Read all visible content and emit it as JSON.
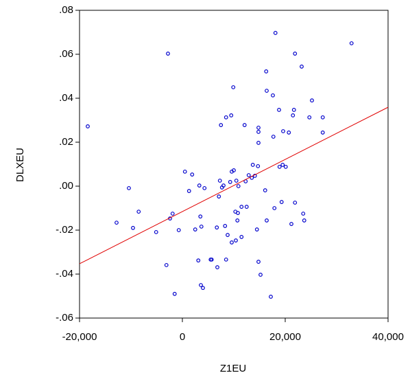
{
  "chart_data": {
    "type": "scatter",
    "x_label": "Z1EU",
    "y_label": "DLXEU",
    "xlim": [
      -20000,
      40000
    ],
    "xticks": [
      {
        "value": -20000,
        "label": "-20,000"
      },
      0,
      {
        "value": 20000,
        "label": "20,000"
      },
      {
        "value": 40000,
        "label": "40,000"
      }
    ],
    "ylim": [
      -0.06,
      0.08
    ],
    "yticks": [
      {
        "value": -0.06,
        "label": "-.06"
      },
      {
        "value": -0.04,
        "label": "-.04"
      },
      {
        "value": -0.02,
        "label": "-.02"
      },
      {
        "value": 0,
        "label": ".00"
      },
      {
        "value": 0.02,
        "label": ".02"
      },
      {
        "value": 0.04,
        "label": ".04"
      },
      {
        "value": 0.06,
        "label": ".06"
      },
      {
        "value": 0.08,
        "label": ".08"
      }
    ],
    "color": "#0000cc",
    "x": [
      -18400,
      -2800,
      -10400,
      -12800,
      -8500,
      -9600,
      -5100,
      -2400,
      -1900,
      -3100,
      -1500,
      -700,
      500,
      1900,
      1300,
      3300,
      4300,
      2500,
      3500,
      3700,
      3100,
      3600,
      4000,
      5500,
      5700,
      6700,
      6800,
      7300,
      7100,
      7500,
      7700,
      8000,
      8300,
      8500,
      8500,
      8800,
      9300,
      9500,
      9600,
      9600,
      9900,
      10000,
      10300,
      10400,
      10500,
      10700,
      10900,
      10800,
      11500,
      11500,
      12100,
      12300,
      12500,
      12900,
      13500,
      13700,
      14100,
      14500,
      14700,
      14800,
      14800,
      14800,
      14800,
      15200,
      16100,
      16400,
      16300,
      16400,
      17200,
      17600,
      17700,
      17900,
      18100,
      18800,
      18900,
      19300,
      19500,
      19600,
      20100,
      20700,
      21200,
      21500,
      21700,
      21900,
      21900,
      23200,
      23500,
      23700,
      24700,
      25200,
      27300,
      27300,
      32900
    ],
    "values": [
      0.0272,
      0.0603,
      -0.0009,
      -0.0166,
      -0.0116,
      -0.019,
      -0.0209,
      -0.0147,
      -0.0125,
      -0.0359,
      -0.049,
      -0.02,
      0.0066,
      0.0053,
      -0.0022,
      0.0003,
      -0.0009,
      -0.0197,
      -0.0138,
      -0.0184,
      -0.0338,
      -0.045,
      -0.0463,
      -0.0334,
      -0.0334,
      -0.0188,
      -0.0369,
      0.0025,
      -0.0047,
      0.0278,
      -0.0006,
      0.0003,
      -0.0181,
      -0.0334,
      0.0313,
      -0.0222,
      0.0019,
      0.0322,
      0.0066,
      -0.0256,
      0.045,
      0.0072,
      -0.0116,
      -0.0247,
      0.0025,
      -0.0156,
      0.0,
      -0.0122,
      -0.0094,
      -0.0231,
      0.0278,
      0.0022,
      -0.0094,
      0.005,
      0.0038,
      0.0097,
      0.0047,
      -0.0197,
      0.0091,
      0.0266,
      0.0247,
      0.0197,
      -0.0344,
      -0.0403,
      -0.0019,
      -0.0156,
      0.0522,
      0.0434,
      -0.0503,
      0.0413,
      0.0225,
      -0.01,
      0.0697,
      0.0347,
      0.0088,
      -0.0072,
      0.0097,
      0.025,
      0.0088,
      0.0244,
      -0.0172,
      0.0322,
      0.0347,
      -0.0075,
      0.0603,
      0.0544,
      -0.0125,
      -0.0156,
      0.0313,
      0.039,
      0.0313,
      0.0244,
      0.065
    ],
    "fit_line": {
      "color": "#e00000",
      "x": [
        -20000,
        40000
      ],
      "y": [
        -0.0353,
        0.0359
      ]
    }
  }
}
